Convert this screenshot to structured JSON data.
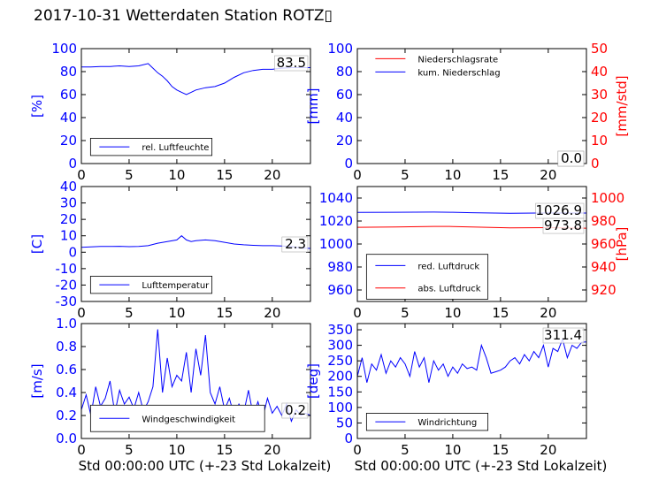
{
  "page": {
    "title": "2017-10-31 Wetterdaten Station ROTZ▯"
  },
  "chart_data": [
    {
      "id": "humidity",
      "type": "line",
      "xlim": [
        0,
        24
      ],
      "xticks": [
        0,
        5,
        10,
        15,
        20
      ],
      "ylim": [
        0,
        100
      ],
      "yticks": [
        0,
        20,
        40,
        60,
        80,
        100
      ],
      "ylabel": "[%]",
      "xlabel": "",
      "legend": "bottom-left",
      "legend_box": [
        0.04,
        0.22,
        0.57,
        0.07
      ],
      "value_label": "83.5",
      "series": [
        {
          "name": "rel. Luftfeuchte",
          "color": "#0000ff",
          "x": [
            0,
            1,
            2,
            3,
            4,
            5,
            6,
            7,
            7.5,
            8,
            8.5,
            9,
            9.5,
            10,
            10.5,
            11,
            11.5,
            12,
            13,
            14,
            15,
            16,
            17,
            18,
            19,
            20,
            21,
            22,
            23,
            24
          ],
          "y": [
            84,
            84,
            84.5,
            84.5,
            85,
            84.5,
            85,
            87,
            83,
            79,
            76,
            72,
            67,
            64,
            62,
            60,
            62,
            64,
            66,
            67,
            70,
            75,
            79,
            81,
            82,
            82,
            83,
            83.5,
            83.5,
            83.5
          ]
        }
      ]
    },
    {
      "id": "precipitation",
      "type": "line",
      "xlim": [
        0,
        24
      ],
      "xticks": [
        0,
        5,
        10,
        15,
        20
      ],
      "ylim": [
        0,
        100
      ],
      "yticks": [
        0,
        20,
        40,
        60,
        80,
        100
      ],
      "y2lim": [
        0,
        50
      ],
      "y2ticks": [
        0,
        10,
        20,
        30,
        40,
        50
      ],
      "ylabel": "[mm]",
      "y2label": "[mm/std]",
      "xlabel": "",
      "legend": "top-left",
      "legend_box": [
        0.04,
        0.74,
        0.57,
        0.97
      ],
      "value_label": "0.0",
      "value_label2": "0.0",
      "series": [
        {
          "name": "kum. Niederschlag",
          "color": "#0000ff",
          "axis": "left",
          "x": [
            0,
            24
          ],
          "y": [
            0,
            0
          ]
        },
        {
          "name": "Niederschlagsrate",
          "color": "#ff0000",
          "axis": "right",
          "x": [
            0,
            24
          ],
          "y": [
            0,
            0
          ]
        }
      ]
    },
    {
      "id": "temperature",
      "type": "line",
      "xlim": [
        0,
        24
      ],
      "xticks": [
        0,
        5,
        10,
        15,
        20
      ],
      "ylim": [
        -30,
        40
      ],
      "yticks": [
        -30,
        -20,
        -10,
        0,
        10,
        20,
        30,
        40
      ],
      "ylabel": "[C]",
      "xlabel": "",
      "legend": "bottom-left",
      "legend_box": [
        0.04,
        0.22,
        0.57,
        0.07
      ],
      "value_label": "2.3",
      "series": [
        {
          "name": "Lufttemperatur",
          "color": "#0000ff",
          "x": [
            0,
            1,
            2,
            3,
            4,
            5,
            6,
            7,
            8,
            9,
            10,
            10.5,
            11,
            11.5,
            12,
            13,
            14,
            15,
            16,
            17,
            18,
            19,
            20,
            21,
            22,
            23,
            24
          ],
          "y": [
            3,
            3.2,
            3.5,
            3.5,
            3.6,
            3.4,
            3.5,
            4,
            5.5,
            6.5,
            7.5,
            10,
            7.5,
            6.5,
            7,
            7.5,
            7,
            6,
            5,
            4.5,
            4.2,
            4,
            4,
            3.8,
            3.5,
            2.5,
            2.3
          ]
        }
      ]
    },
    {
      "id": "pressure",
      "type": "line",
      "xlim": [
        0,
        24
      ],
      "xticks": [
        0,
        5,
        10,
        15,
        20
      ],
      "ylim": [
        950,
        1050
      ],
      "yticks": [
        960,
        980,
        1000,
        1020,
        1040
      ],
      "y2lim": [
        910,
        1010
      ],
      "y2ticks": [
        920,
        940,
        960,
        980,
        1000
      ],
      "ylabel": "",
      "y2label": "[hPa]",
      "xlabel": "",
      "legend": "bottom-left",
      "legend_box": [
        0.04,
        0.41,
        0.57,
        0.02
      ],
      "value_label": "1026.9",
      "value_label2": "973.8",
      "series": [
        {
          "name": "red. Luftdruck",
          "color": "#0000ff",
          "axis": "left",
          "x": [
            0,
            4,
            8,
            10,
            12,
            16,
            20,
            24
          ],
          "y": [
            1027.5,
            1027.6,
            1027.8,
            1027.6,
            1027.2,
            1026.8,
            1027,
            1026.9
          ]
        },
        {
          "name": "abs. Luftdruck",
          "color": "#ff0000",
          "axis": "right",
          "x": [
            0,
            4,
            8,
            10,
            12,
            16,
            20,
            24
          ],
          "y": [
            974.5,
            974.8,
            975.3,
            975.2,
            974.8,
            974,
            974.2,
            973.8
          ]
        }
      ]
    },
    {
      "id": "wind_speed",
      "type": "line",
      "xlim": [
        0,
        24
      ],
      "xticks": [
        0,
        5,
        10,
        15,
        20
      ],
      "ylim": [
        0,
        1.0
      ],
      "yticks": [
        0.0,
        0.2,
        0.4,
        0.6,
        0.8,
        1.0
      ],
      "ylabel": "[m/s]",
      "xlabel": "Std 00:00:00 UTC (+-23 Std Lokalzeit)",
      "legend": "bottom-left",
      "legend_box": [
        0.04,
        0.29,
        0.8,
        0.06
      ],
      "value_label": "0.2",
      "series": [
        {
          "name": "Windgeschwindigkeit",
          "color": "#0000ff",
          "x": [
            0,
            0.5,
            1,
            1.5,
            2,
            2.5,
            3,
            3.5,
            4,
            4.5,
            5,
            5.5,
            6,
            6.5,
            7,
            7.5,
            8,
            8.5,
            9,
            9.5,
            10,
            10.5,
            11,
            11.5,
            12,
            12.5,
            13,
            13.5,
            14,
            14.5,
            15,
            15.5,
            16,
            16.5,
            17,
            17.5,
            18,
            18.5,
            19,
            19.5,
            20,
            20.5,
            21,
            21.5,
            22,
            22.5,
            23,
            23.5,
            24
          ],
          "y": [
            0.25,
            0.38,
            0.2,
            0.45,
            0.28,
            0.35,
            0.5,
            0.22,
            0.42,
            0.3,
            0.36,
            0.26,
            0.4,
            0.24,
            0.32,
            0.45,
            0.95,
            0.4,
            0.7,
            0.45,
            0.55,
            0.5,
            0.75,
            0.4,
            0.78,
            0.55,
            0.9,
            0.4,
            0.3,
            0.45,
            0.25,
            0.35,
            0.2,
            0.3,
            0.22,
            0.42,
            0.2,
            0.32,
            0.18,
            0.35,
            0.22,
            0.28,
            0.2,
            0.3,
            0.15,
            0.25,
            0.2,
            0.22,
            0.2
          ]
        }
      ]
    },
    {
      "id": "wind_direction",
      "type": "line",
      "xlim": [
        0,
        24
      ],
      "xticks": [
        0,
        5,
        10,
        15,
        20
      ],
      "ylim": [
        0,
        370
      ],
      "yticks": [
        0,
        50,
        100,
        150,
        200,
        250,
        300,
        350
      ],
      "ylabel": "[deg]",
      "xlabel": "Std 00:00:00 UTC (+-23 Std Lokalzeit)",
      "legend": "bottom-left",
      "legend_box": [
        0.04,
        0.22,
        0.57,
        0.07
      ],
      "value_label": "311.4",
      "series": [
        {
          "name": "Windrichtung",
          "color": "#0000ff",
          "x": [
            0,
            0.5,
            1,
            1.5,
            2,
            2.5,
            3,
            3.5,
            4,
            4.5,
            5,
            5.5,
            6,
            6.5,
            7,
            7.5,
            8,
            8.5,
            9,
            9.5,
            10,
            10.5,
            11,
            11.5,
            12,
            12.5,
            13,
            13.5,
            14,
            14.5,
            15,
            15.5,
            16,
            16.5,
            17,
            17.5,
            18,
            18.5,
            19,
            19.5,
            20,
            20.5,
            21,
            21.5,
            22,
            22.5,
            23,
            23.5,
            24
          ],
          "y": [
            200,
            260,
            180,
            240,
            220,
            270,
            210,
            250,
            230,
            260,
            240,
            200,
            280,
            230,
            260,
            180,
            250,
            220,
            240,
            200,
            230,
            210,
            240,
            225,
            230,
            220,
            300,
            260,
            210,
            215,
            220,
            230,
            250,
            260,
            240,
            270,
            250,
            280,
            260,
            300,
            230,
            290,
            280,
            320,
            260,
            300,
            290,
            310,
            311
          ]
        }
      ]
    }
  ]
}
